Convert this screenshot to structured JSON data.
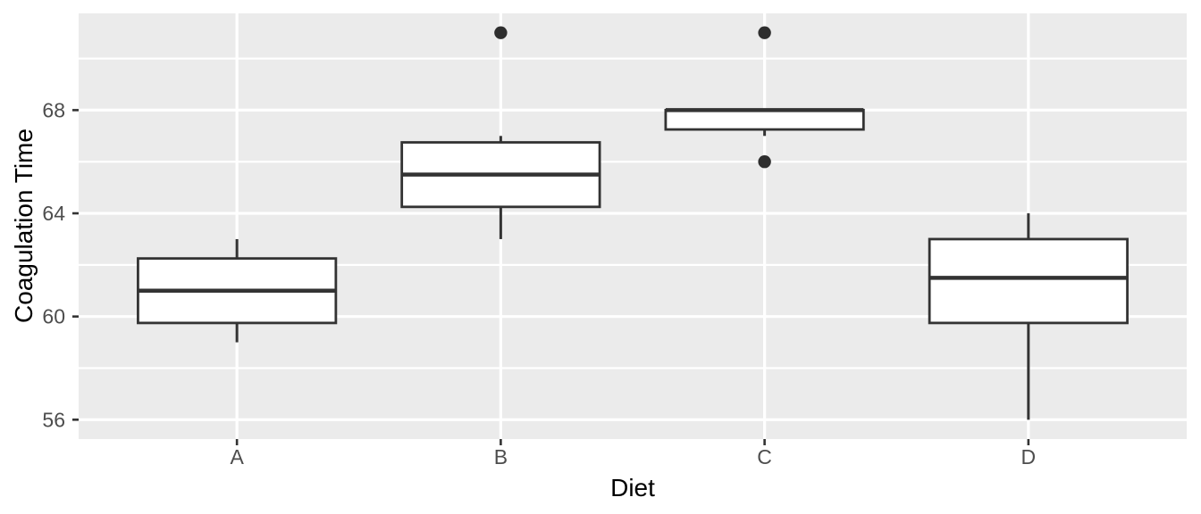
{
  "chart_data": {
    "type": "boxplot",
    "title": "",
    "xlabel": "Diet",
    "ylabel": "Coagulation Time",
    "categories": [
      "A",
      "B",
      "C",
      "D"
    ],
    "series": [
      {
        "category": "A",
        "whisker_low": 59,
        "q1": 59.75,
        "median": 61,
        "q3": 62.25,
        "whisker_high": 63,
        "outliers": []
      },
      {
        "category": "B",
        "whisker_low": 63,
        "q1": 64.25,
        "median": 65.5,
        "q3": 66.75,
        "whisker_high": 67,
        "outliers": [
          71
        ]
      },
      {
        "category": "C",
        "whisker_low": 67,
        "q1": 67.25,
        "median": 68,
        "q3": 68,
        "whisker_high": 68,
        "outliers": [
          71,
          66
        ]
      },
      {
        "category": "D",
        "whisker_low": 56,
        "q1": 59.75,
        "median": 61.5,
        "q3": 63,
        "whisker_high": 64,
        "outliers": []
      }
    ],
    "y_axis": {
      "tick_labels": [
        "56",
        "60",
        "64",
        "68"
      ],
      "ticks": [
        56,
        60,
        64,
        68
      ],
      "minor_ticks": [
        58,
        62,
        66,
        70
      ],
      "lim": [
        55.25,
        71.75
      ]
    },
    "x_axis": {
      "tick_labels": [
        "A",
        "B",
        "C",
        "D"
      ]
    },
    "grid": true,
    "legend": false,
    "style": {
      "panel_bg": "#EBEBEB",
      "grid_color": "#FFFFFF",
      "box_stroke": "#333333",
      "box_fill": "#FFFFFF",
      "outlier_color": "#2E2E2E",
      "axis_text_color": "#4D4D4D",
      "axis_title_color": "#000000"
    }
  }
}
